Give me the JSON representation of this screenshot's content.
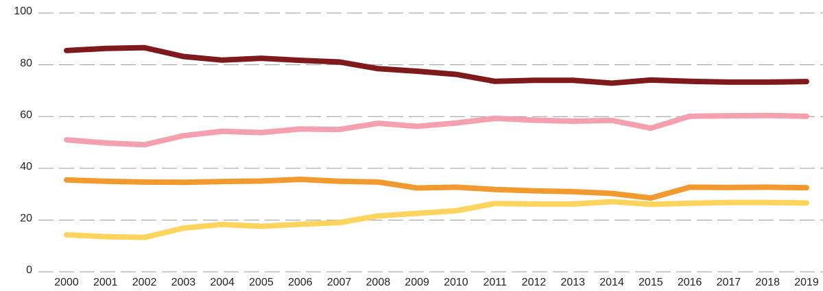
{
  "chart_data": {
    "type": "line",
    "categories": [
      "2000",
      "2001",
      "2002",
      "2003",
      "2004",
      "2005",
      "2006",
      "2007",
      "2008",
      "2009",
      "2010",
      "2011",
      "2012",
      "2013",
      "2014",
      "2015",
      "2016",
      "2017",
      "2018",
      "2019"
    ],
    "series": [
      {
        "color": "#7f1a1c",
        "values": [
          85.5,
          86.3,
          86.6,
          83.2,
          81.8,
          82.5,
          81.7,
          81.1,
          78.5,
          77.5,
          76.3,
          73.6,
          74.0,
          74.0,
          72.9,
          74.1,
          73.6,
          73.3,
          73.3,
          73.5
        ]
      },
      {
        "color": "#f4a0ae",
        "values": [
          51.0,
          49.8,
          49.1,
          52.6,
          54.3,
          53.8,
          55.2,
          55.0,
          57.4,
          56.2,
          57.5,
          59.3,
          58.6,
          58.2,
          58.5,
          55.5,
          60.1,
          60.3,
          60.4,
          60.1
        ]
      },
      {
        "color": "#f19a30",
        "values": [
          35.5,
          35.0,
          34.7,
          34.6,
          34.9,
          35.1,
          35.7,
          35.0,
          34.7,
          32.4,
          32.7,
          31.8,
          31.3,
          31.0,
          30.3,
          28.5,
          32.7,
          32.6,
          32.7,
          32.5
        ]
      },
      {
        "color": "#fdd55e",
        "values": [
          14.3,
          13.6,
          13.3,
          16.9,
          18.3,
          17.6,
          18.4,
          19.0,
          21.6,
          22.6,
          23.6,
          26.4,
          26.2,
          26.2,
          27.1,
          26.1,
          26.5,
          26.8,
          26.8,
          26.6
        ]
      }
    ],
    "ylim": [
      0,
      100
    ],
    "yticks": [
      0,
      20,
      40,
      60,
      80,
      100
    ],
    "grid": true
  }
}
